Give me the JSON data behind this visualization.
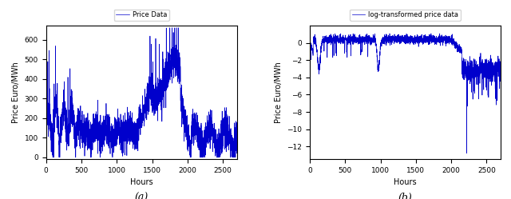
{
  "fig_width": 6.4,
  "fig_height": 2.49,
  "dpi": 100,
  "line_color": "#0000cc",
  "line_width": 0.5,
  "n_points": 2700,
  "subplot_a": {
    "ylabel": "Price Euro/MWh",
    "xlabel": "Hours",
    "legend_label": "Price Data",
    "caption": "(a)",
    "xlim": [
      0,
      2700
    ],
    "ylim": [
      -10,
      670
    ],
    "yticks": [
      0,
      100,
      200,
      300,
      400,
      500,
      600
    ],
    "xticks": [
      0,
      500,
      1000,
      1500,
      2000,
      2500
    ]
  },
  "subplot_b": {
    "ylabel": "Price Euro/MWh",
    "xlabel": "Hours",
    "legend_label": "log-transformed price data",
    "caption": "(b)",
    "xlim": [
      0,
      2700
    ],
    "ylim": [
      -13.5,
      2
    ],
    "yticks": [
      0,
      -2,
      -4,
      -6,
      -8,
      -10,
      -12
    ],
    "xticks": [
      0,
      500,
      1000,
      1500,
      2000,
      2500
    ]
  }
}
